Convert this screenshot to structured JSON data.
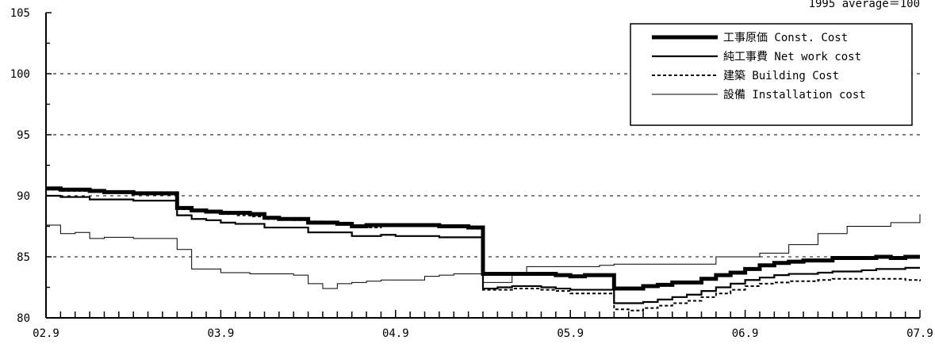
{
  "chart_data": {
    "type": "line",
    "note": "1995 average＝100",
    "ylim": [
      80,
      105
    ],
    "y_gridlines": [
      85,
      90,
      95,
      100
    ],
    "y_ticks": [
      "105",
      "100",
      "95",
      "90",
      "85",
      "80"
    ],
    "x_ticks": [
      "02.9",
      "03.9",
      "04.9",
      "05.9",
      "06.9",
      "07.9"
    ],
    "legend_position": "top-right",
    "x_months": [
      "2002-09",
      "2002-10",
      "2002-11",
      "2002-12",
      "2003-01",
      "2003-02",
      "2003-03",
      "2003-04",
      "2003-05",
      "2003-06",
      "2003-07",
      "2003-08",
      "2003-09",
      "2003-10",
      "2003-11",
      "2003-12",
      "2004-01",
      "2004-02",
      "2004-03",
      "2004-04",
      "2004-05",
      "2004-06",
      "2004-07",
      "2004-08",
      "2004-09",
      "2004-10",
      "2004-11",
      "2004-12",
      "2005-01",
      "2005-02",
      "2005-03",
      "2005-04",
      "2005-05",
      "2005-06",
      "2005-07",
      "2005-08",
      "2005-09",
      "2005-10",
      "2005-11",
      "2005-12",
      "2006-01",
      "2006-02",
      "2006-03",
      "2006-04",
      "2006-05",
      "2006-06",
      "2006-07",
      "2006-08",
      "2006-09",
      "2006-10",
      "2006-11",
      "2006-12",
      "2007-01",
      "2007-02",
      "2007-03",
      "2007-04",
      "2007-05",
      "2007-06",
      "2007-07",
      "2007-08",
      "2007-09"
    ],
    "series": [
      {
        "name": "工事原価 Const. Cost",
        "name_jp": "工事原価",
        "name_en": "Const. Cost",
        "style": "thick",
        "values": [
          90.6,
          90.5,
          90.5,
          90.4,
          90.3,
          90.3,
          90.2,
          90.2,
          90.2,
          89.0,
          88.8,
          88.7,
          88.6,
          88.6,
          88.5,
          88.2,
          88.1,
          88.1,
          87.8,
          87.8,
          87.7,
          87.5,
          87.6,
          87.6,
          87.6,
          87.6,
          87.6,
          87.5,
          87.5,
          87.4,
          83.6,
          83.6,
          83.6,
          83.6,
          83.6,
          83.5,
          83.4,
          83.5,
          83.5,
          82.4,
          82.4,
          82.6,
          82.7,
          82.9,
          82.9,
          83.2,
          83.5,
          83.7,
          84.0,
          84.3,
          84.5,
          84.6,
          84.7,
          84.7,
          84.9,
          84.9,
          84.9,
          85.0,
          84.9,
          85.0,
          85.0
        ]
      },
      {
        "name": "純工事費 Net work cost",
        "name_jp": "純工事費",
        "name_en": "Net work cost",
        "style": "medium",
        "values": [
          90.0,
          89.9,
          89.9,
          89.7,
          89.7,
          89.7,
          89.6,
          89.6,
          89.6,
          88.4,
          88.1,
          88.0,
          87.8,
          87.7,
          87.7,
          87.4,
          87.4,
          87.4,
          87.0,
          87.0,
          87.0,
          86.7,
          86.7,
          86.8,
          86.7,
          86.7,
          86.7,
          86.6,
          86.6,
          86.6,
          82.4,
          82.5,
          82.6,
          82.6,
          82.5,
          82.4,
          82.3,
          82.3,
          82.3,
          81.2,
          81.2,
          81.3,
          81.5,
          81.7,
          81.9,
          82.2,
          82.5,
          82.8,
          83.1,
          83.3,
          83.5,
          83.6,
          83.6,
          83.7,
          83.8,
          83.8,
          83.9,
          84.0,
          84.0,
          84.1,
          84.1
        ]
      },
      {
        "name": "建築 Building Cost",
        "name_jp": "建築",
        "name_en": "Building Cost",
        "style": "dashed",
        "values": [
          90.5,
          90.4,
          90.4,
          90.4,
          90.3,
          90.3,
          90.2,
          90.2,
          90.1,
          88.9,
          88.7,
          88.6,
          88.5,
          88.4,
          88.3,
          88.1,
          88.1,
          88.0,
          87.9,
          87.8,
          87.7,
          87.5,
          87.4,
          87.5,
          87.5,
          87.5,
          87.5,
          87.4,
          87.4,
          87.3,
          82.3,
          82.3,
          82.4,
          82.4,
          82.3,
          82.2,
          82.0,
          82.0,
          82.0,
          80.7,
          80.6,
          80.8,
          81.0,
          81.2,
          81.4,
          81.7,
          82.0,
          82.3,
          82.6,
          82.8,
          82.9,
          83.0,
          83.0,
          83.1,
          83.2,
          83.2,
          83.2,
          83.2,
          83.2,
          83.1,
          83.0
        ]
      },
      {
        "name": "設備 Installation cost",
        "name_jp": "設備",
        "name_en": "Installation cost",
        "style": "thin",
        "values": [
          87.6,
          86.9,
          87.0,
          86.5,
          86.6,
          86.6,
          86.5,
          86.5,
          86.5,
          85.6,
          84.0,
          84.0,
          83.7,
          83.7,
          83.6,
          83.6,
          83.6,
          83.5,
          82.8,
          82.4,
          82.8,
          82.9,
          83.0,
          83.1,
          83.1,
          83.1,
          83.4,
          83.5,
          83.6,
          83.6,
          82.9,
          82.9,
          83.5,
          84.2,
          84.2,
          84.2,
          84.2,
          84.2,
          84.3,
          84.4,
          84.4,
          84.4,
          84.4,
          84.4,
          84.4,
          84.4,
          85.0,
          85.0,
          85.0,
          85.3,
          85.3,
          86.0,
          86.0,
          86.9,
          86.9,
          87.5,
          87.5,
          87.5,
          87.8,
          87.8,
          88.5
        ]
      }
    ]
  }
}
